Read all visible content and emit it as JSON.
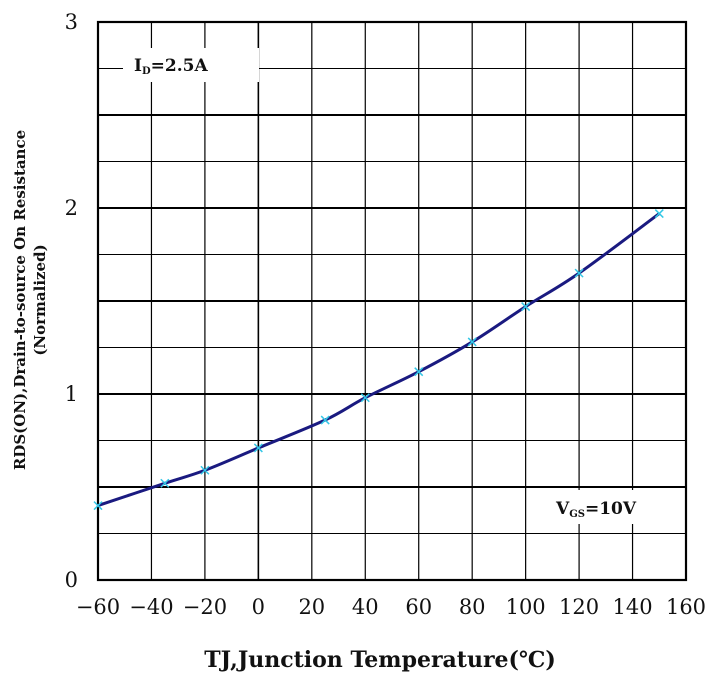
{
  "chart_data": {
    "type": "line",
    "title": "",
    "xlabel": "TJ,Junction Temperature(℃)",
    "ylabel_line1": "RDS(ON),Drain-to-source On Resistance",
    "ylabel_line2": "(Normalized)",
    "xlim": [
      -60,
      160
    ],
    "ylim": [
      0,
      3
    ],
    "xticks": [
      -60,
      -40,
      -20,
      0,
      20,
      40,
      60,
      80,
      100,
      120,
      140,
      160
    ],
    "yticks": [
      0,
      1,
      2,
      3
    ],
    "grid": true,
    "series": [
      {
        "color": "#1a1a80",
        "marker_color": "#33c7e6",
        "x": [
          -60,
          -35,
          -20,
          0,
          25,
          40,
          60,
          80,
          100,
          120,
          150
        ],
        "y": [
          0.4,
          0.52,
          0.59,
          0.71,
          0.86,
          0.98,
          1.12,
          1.28,
          1.47,
          1.65,
          1.97
        ]
      }
    ],
    "annotations": [
      {
        "main": "I",
        "sub": "D",
        "rest": "=2.5A",
        "position": "top-left"
      },
      {
        "main": "V",
        "sub": "GS",
        "rest": "=10V",
        "position": "bottom-right"
      }
    ]
  }
}
